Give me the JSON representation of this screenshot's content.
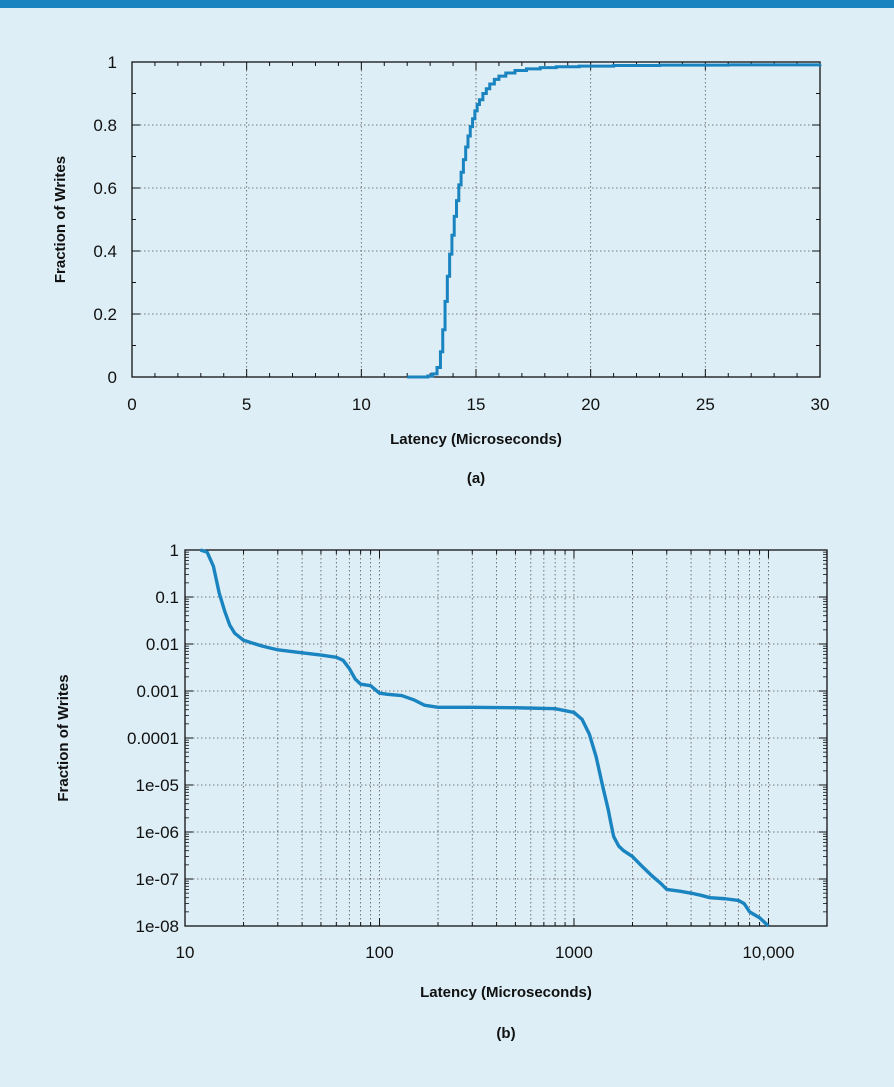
{
  "colors": {
    "background": "#ddeef6",
    "topbar": "#1a84c0",
    "line": "#1a84c0",
    "grid": "#555555",
    "axis": "#111111"
  },
  "chart_data": [
    {
      "type": "line",
      "caption": "(a)",
      "xlabel": "Latency (Microseconds)",
      "ylabel": "Fraction of Writes",
      "xlim": [
        0,
        30
      ],
      "ylim": [
        0,
        1
      ],
      "xticks": [
        "0",
        "5",
        "10",
        "15",
        "20",
        "25",
        "30"
      ],
      "yticks": [
        "0",
        "0.2",
        "0.4",
        "0.6",
        "0.8",
        "1"
      ],
      "grid": true,
      "series": [
        {
          "step": true,
          "x": [
            12.0,
            12.6,
            12.9,
            13.1,
            13.3,
            13.45,
            13.55,
            13.65,
            13.75,
            13.85,
            13.95,
            14.05,
            14.15,
            14.25,
            14.35,
            14.45,
            14.55,
            14.65,
            14.75,
            14.85,
            14.95,
            15.05,
            15.15,
            15.3,
            15.45,
            15.6,
            15.8,
            16.0,
            16.3,
            16.7,
            17.2,
            17.8,
            18.5,
            19.5,
            21.0,
            23.0,
            26.0,
            30.0
          ],
          "y": [
            0.0,
            0.0,
            0.003,
            0.01,
            0.03,
            0.08,
            0.15,
            0.24,
            0.32,
            0.39,
            0.45,
            0.51,
            0.56,
            0.61,
            0.65,
            0.69,
            0.73,
            0.765,
            0.795,
            0.82,
            0.845,
            0.865,
            0.88,
            0.9,
            0.915,
            0.93,
            0.945,
            0.955,
            0.965,
            0.973,
            0.978,
            0.982,
            0.985,
            0.987,
            0.989,
            0.99,
            0.991,
            0.992
          ]
        }
      ]
    },
    {
      "type": "line",
      "caption": "(b)",
      "xlabel": "Latency (Microseconds)",
      "ylabel": "Fraction of Writes",
      "xscale": "log",
      "yscale": "log",
      "xlim": [
        10,
        20000
      ],
      "ylim": [
        1e-08,
        1
      ],
      "xticks": [
        "10",
        "100",
        "1000",
        "10,000"
      ],
      "yticks": [
        "1",
        "0.1",
        "0.01",
        "0.001",
        "0.0001",
        "1e-05",
        "1e-06",
        "1e-07",
        "1e-08"
      ],
      "grid": true,
      "series": [
        {
          "x": [
            12,
            13,
            14,
            15,
            16,
            17,
            18,
            20,
            25,
            30,
            40,
            50,
            60,
            65,
            70,
            75,
            80,
            90,
            100,
            110,
            130,
            150,
            170,
            200,
            300,
            500,
            800,
            1000,
            1100,
            1200,
            1300,
            1400,
            1500,
            1550,
            1600,
            1700,
            1800,
            2000,
            2200,
            2500,
            2800,
            3000,
            3500,
            4000,
            4500,
            5000,
            6000,
            7000,
            7500,
            8000,
            9000,
            10000
          ],
          "y": [
            1,
            0.9,
            0.45,
            0.12,
            0.05,
            0.025,
            0.017,
            0.012,
            0.009,
            0.0075,
            0.0065,
            0.0058,
            0.0052,
            0.0045,
            0.003,
            0.0018,
            0.0014,
            0.0013,
            0.0009,
            0.00085,
            0.0008,
            0.00065,
            0.0005,
            0.00045,
            0.00045,
            0.00044,
            0.00042,
            0.00035,
            0.00025,
            0.00012,
            4e-05,
            1e-05,
            3e-06,
            1.5e-06,
            8e-07,
            5e-07,
            4e-07,
            3e-07,
            2e-07,
            1.2e-07,
            8e-08,
            6e-08,
            5.5e-08,
            5e-08,
            4.5e-08,
            4e-08,
            3.8e-08,
            3.5e-08,
            3e-08,
            2e-08,
            1.5e-08,
            1e-08
          ]
        }
      ]
    }
  ]
}
